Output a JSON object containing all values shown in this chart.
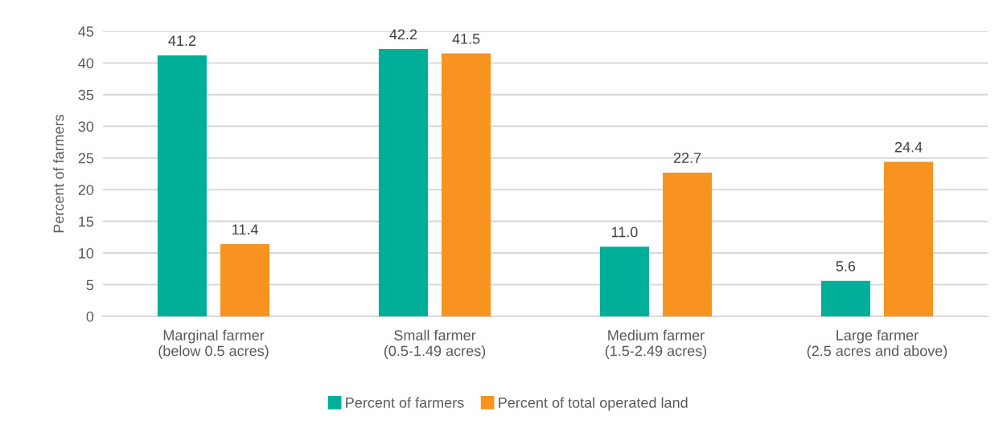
{
  "chart_data": {
    "type": "bar",
    "ylabel": "Percent of farmers",
    "categories": [
      "Marginal farmer\n(below 0.5 acres)",
      "Small farmer\n(0.5-1.49 acres)",
      "Medium farmer\n(1.5-2.49 acres)",
      "Large farmer\n(2.5 acres and above)"
    ],
    "series": [
      {
        "name": "Percent of farmers",
        "color": "#00ae99",
        "values": [
          41.2,
          42.2,
          11.0,
          5.6
        ],
        "value_labels": [
          "41.2",
          "42.2",
          "11.0",
          "5.6"
        ]
      },
      {
        "name": "Percent of total operated land",
        "color": "#f7931e",
        "values": [
          11.4,
          41.5,
          22.7,
          24.4
        ],
        "value_labels": [
          "11.4",
          "41.5",
          "22.7",
          "24.4"
        ]
      }
    ],
    "ylim": [
      0,
      45
    ],
    "yticks": [
      0,
      5,
      10,
      15,
      20,
      25,
      30,
      35,
      40,
      45
    ],
    "grid": "y",
    "legend": "bottom"
  }
}
